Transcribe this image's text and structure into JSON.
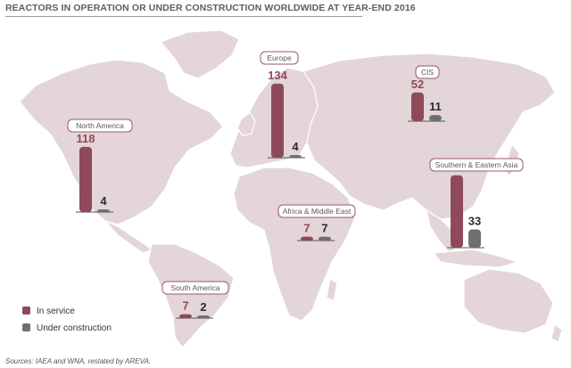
{
  "title": "REACTORS IN OPERATION OR UNDER CONSTRUCTION WORLDWIDE AT YEAR-END 2016",
  "source": "Sources: IAEA and WNA, restated by AREVA.",
  "colors": {
    "in_service": "#8f4a5a",
    "under_construction": "#6f6f6f",
    "land": "#e3d5d8"
  },
  "legend": [
    {
      "label": "In service",
      "color": "#8f4a5a"
    },
    {
      "label": "Under construction",
      "color": "#6f6f6f"
    }
  ],
  "chart_data": {
    "type": "bar",
    "title": "REACTORS IN OPERATION OR UNDER CONSTRUCTION WORLDWIDE AT YEAR-END 2016",
    "categories": [
      "North America",
      "Europe",
      "CIS",
      "Southern & Eastern Asia",
      "Africa & Middle East",
      "South America"
    ],
    "series": [
      {
        "name": "In service",
        "values": [
          118,
          134,
          52,
          131,
          7,
          7
        ]
      },
      {
        "name": "Under construction",
        "values": [
          4,
          4,
          11,
          33,
          7,
          2
        ]
      }
    ],
    "legend_position": "bottom-left",
    "background": "world map"
  }
}
